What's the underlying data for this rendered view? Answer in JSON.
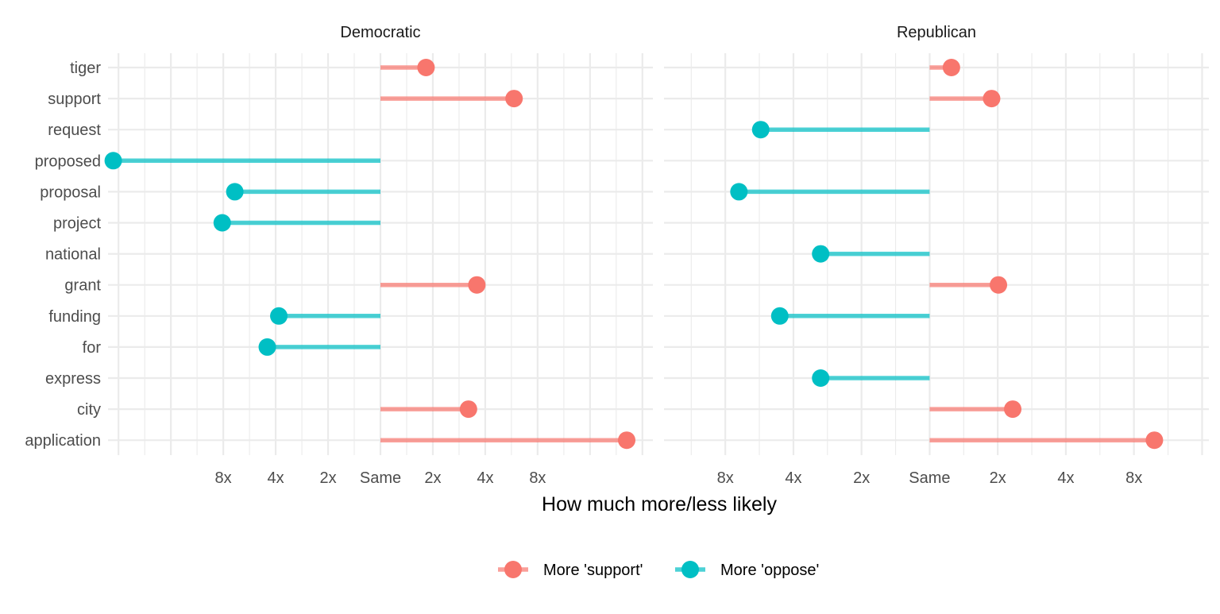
{
  "chart_data": {
    "type": "lollipop",
    "scale": "log2",
    "xlabel": "How much more/less likely",
    "ylabel": "",
    "x_ticks": [
      {
        "value": -3,
        "label": "8x"
      },
      {
        "value": -2,
        "label": "4x"
      },
      {
        "value": -1,
        "label": "2x"
      },
      {
        "value": 0,
        "label": "Same"
      },
      {
        "value": 1,
        "label": "2x"
      },
      {
        "value": 2,
        "label": "4x"
      },
      {
        "value": 3,
        "label": "8x"
      }
    ],
    "categories": [
      "tiger",
      "support",
      "request",
      "proposed",
      "proposal",
      "project",
      "national",
      "grant",
      "funding",
      "for",
      "express",
      "city",
      "application"
    ],
    "legend": {
      "position": "bottom",
      "items": [
        {
          "key": "support",
          "label": "More 'support'",
          "color": "#F8766D"
        },
        {
          "key": "oppose",
          "label": "More 'oppose'",
          "color": "#00BFC4"
        }
      ]
    },
    "panels": [
      {
        "title": "Democratic",
        "xlim": [
          -5.2,
          5.2
        ],
        "values": [
          {
            "word": "tiger",
            "log2_ratio": 0.87
          },
          {
            "word": "support",
            "log2_ratio": 2.55
          },
          {
            "word": "proposed",
            "log2_ratio": -5.1
          },
          {
            "word": "proposal",
            "log2_ratio": -2.78
          },
          {
            "word": "project",
            "log2_ratio": -3.02
          },
          {
            "word": "grant",
            "log2_ratio": 1.84
          },
          {
            "word": "funding",
            "log2_ratio": -1.94
          },
          {
            "word": "for",
            "log2_ratio": -2.16
          },
          {
            "word": "city",
            "log2_ratio": 1.68
          },
          {
            "word": "application",
            "log2_ratio": 4.7
          }
        ]
      },
      {
        "title": "Republican",
        "xlim": [
          -3.9,
          4.1
        ],
        "values": [
          {
            "word": "tiger",
            "log2_ratio": 0.32
          },
          {
            "word": "support",
            "log2_ratio": 0.91
          },
          {
            "word": "request",
            "log2_ratio": -2.48
          },
          {
            "word": "proposal",
            "log2_ratio": -2.8
          },
          {
            "word": "national",
            "log2_ratio": -1.6
          },
          {
            "word": "grant",
            "log2_ratio": 1.01
          },
          {
            "word": "funding",
            "log2_ratio": -2.2
          },
          {
            "word": "express",
            "log2_ratio": -1.6
          },
          {
            "word": "city",
            "log2_ratio": 1.22
          },
          {
            "word": "application",
            "log2_ratio": 3.3
          }
        ]
      }
    ]
  }
}
